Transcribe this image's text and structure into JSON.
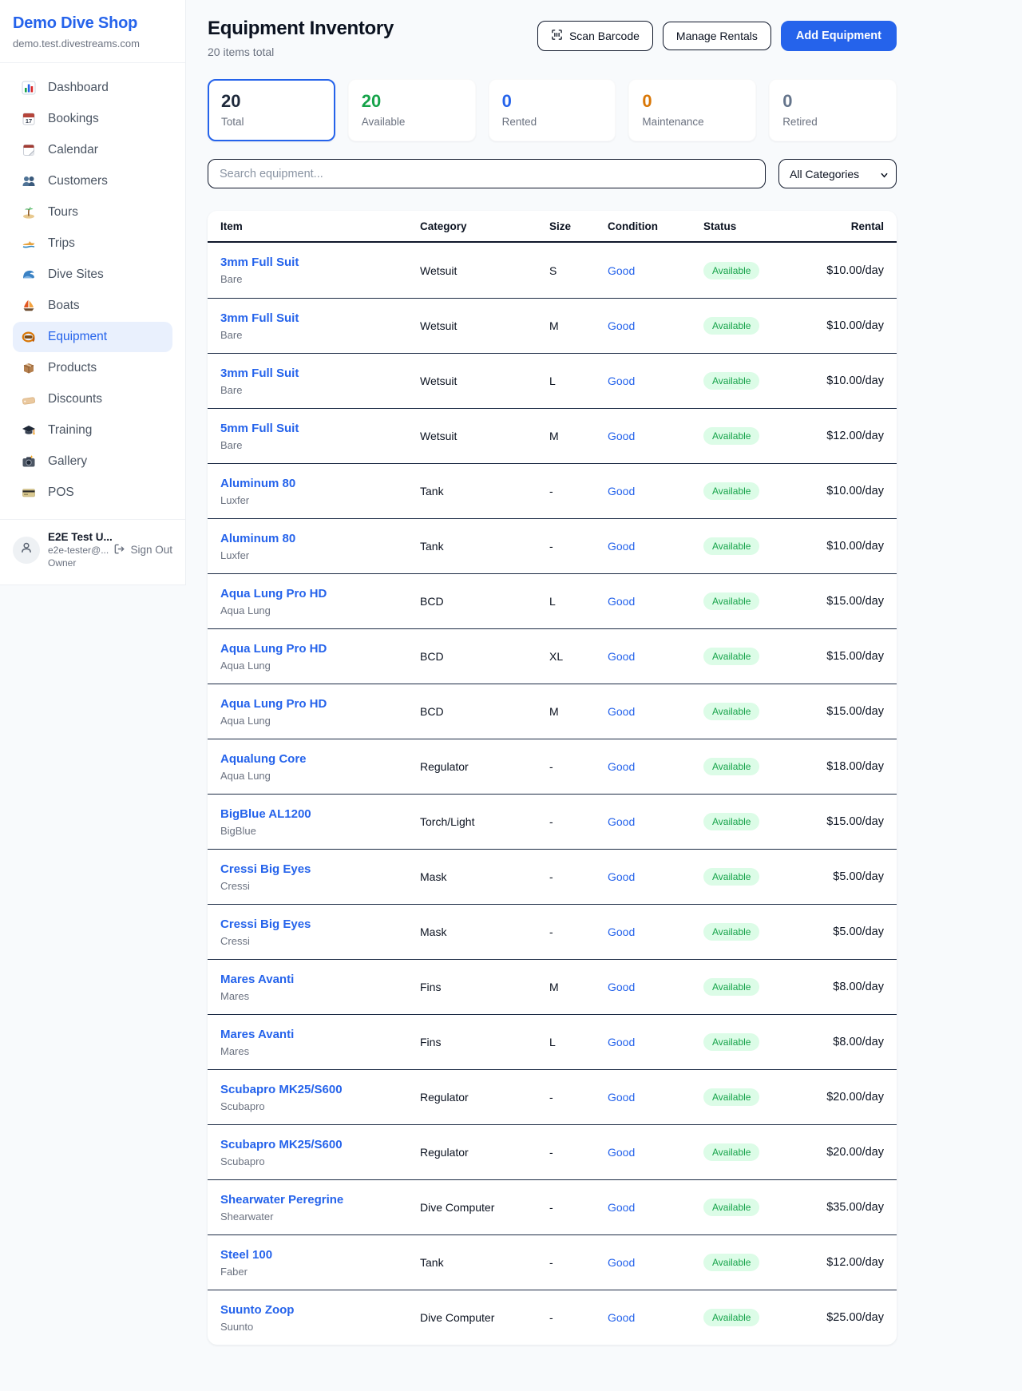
{
  "sidebar": {
    "brand": "Demo Dive Shop",
    "domain": "demo.test.divestreams.com",
    "items": [
      {
        "label": "Dashboard",
        "icon": "dashboard-icon"
      },
      {
        "label": "Bookings",
        "icon": "bookings-icon"
      },
      {
        "label": "Calendar",
        "icon": "calendar-icon"
      },
      {
        "label": "Customers",
        "icon": "customers-icon"
      },
      {
        "label": "Tours",
        "icon": "tours-icon"
      },
      {
        "label": "Trips",
        "icon": "trips-icon"
      },
      {
        "label": "Dive Sites",
        "icon": "dive-sites-icon"
      },
      {
        "label": "Boats",
        "icon": "boats-icon"
      },
      {
        "label": "Equipment",
        "icon": "equipment-icon",
        "active": true
      },
      {
        "label": "Products",
        "icon": "products-icon"
      },
      {
        "label": "Discounts",
        "icon": "discounts-icon"
      },
      {
        "label": "Training",
        "icon": "training-icon"
      },
      {
        "label": "Gallery",
        "icon": "gallery-icon"
      },
      {
        "label": "POS",
        "icon": "pos-icon"
      }
    ],
    "user": {
      "name": "E2E Test U...",
      "email": "e2e-tester@...",
      "role": "Owner",
      "sign_out": "Sign Out"
    }
  },
  "header": {
    "title": "Equipment Inventory",
    "subtitle": "20 items total",
    "scan_barcode": "Scan Barcode",
    "manage_rentals": "Manage Rentals",
    "add_equipment": "Add Equipment"
  },
  "stats": [
    {
      "value": "20",
      "label": "Total",
      "color": "#1e293b",
      "selected": true
    },
    {
      "value": "20",
      "label": "Available",
      "color": "#16a34a",
      "selected": false
    },
    {
      "value": "0",
      "label": "Rented",
      "color": "#2563eb",
      "selected": false
    },
    {
      "value": "0",
      "label": "Maintenance",
      "color": "#d97706",
      "selected": false
    },
    {
      "value": "0",
      "label": "Retired",
      "color": "#64748b",
      "selected": false
    }
  ],
  "filters": {
    "search_placeholder": "Search equipment...",
    "category": "All Categories"
  },
  "table": {
    "columns": [
      "Item",
      "Category",
      "Size",
      "Condition",
      "Status",
      "Rental"
    ],
    "rows": [
      {
        "name": "3mm Full Suit",
        "brand": "Bare",
        "category": "Wetsuit",
        "size": "S",
        "condition": "Good",
        "status": "Available",
        "rental": "$10.00/day"
      },
      {
        "name": "3mm Full Suit",
        "brand": "Bare",
        "category": "Wetsuit",
        "size": "M",
        "condition": "Good",
        "status": "Available",
        "rental": "$10.00/day"
      },
      {
        "name": "3mm Full Suit",
        "brand": "Bare",
        "category": "Wetsuit",
        "size": "L",
        "condition": "Good",
        "status": "Available",
        "rental": "$10.00/day"
      },
      {
        "name": "5mm Full Suit",
        "brand": "Bare",
        "category": "Wetsuit",
        "size": "M",
        "condition": "Good",
        "status": "Available",
        "rental": "$12.00/day"
      },
      {
        "name": "Aluminum 80",
        "brand": "Luxfer",
        "category": "Tank",
        "size": "-",
        "condition": "Good",
        "status": "Available",
        "rental": "$10.00/day"
      },
      {
        "name": "Aluminum 80",
        "brand": "Luxfer",
        "category": "Tank",
        "size": "-",
        "condition": "Good",
        "status": "Available",
        "rental": "$10.00/day"
      },
      {
        "name": "Aqua Lung Pro HD",
        "brand": "Aqua Lung",
        "category": "BCD",
        "size": "L",
        "condition": "Good",
        "status": "Available",
        "rental": "$15.00/day"
      },
      {
        "name": "Aqua Lung Pro HD",
        "brand": "Aqua Lung",
        "category": "BCD",
        "size": "XL",
        "condition": "Good",
        "status": "Available",
        "rental": "$15.00/day"
      },
      {
        "name": "Aqua Lung Pro HD",
        "brand": "Aqua Lung",
        "category": "BCD",
        "size": "M",
        "condition": "Good",
        "status": "Available",
        "rental": "$15.00/day"
      },
      {
        "name": "Aqualung Core",
        "brand": "Aqua Lung",
        "category": "Regulator",
        "size": "-",
        "condition": "Good",
        "status": "Available",
        "rental": "$18.00/day"
      },
      {
        "name": "BigBlue AL1200",
        "brand": "BigBlue",
        "category": "Torch/Light",
        "size": "-",
        "condition": "Good",
        "status": "Available",
        "rental": "$15.00/day"
      },
      {
        "name": "Cressi Big Eyes",
        "brand": "Cressi",
        "category": "Mask",
        "size": "-",
        "condition": "Good",
        "status": "Available",
        "rental": "$5.00/day"
      },
      {
        "name": "Cressi Big Eyes",
        "brand": "Cressi",
        "category": "Mask",
        "size": "-",
        "condition": "Good",
        "status": "Available",
        "rental": "$5.00/day"
      },
      {
        "name": "Mares Avanti",
        "brand": "Mares",
        "category": "Fins",
        "size": "M",
        "condition": "Good",
        "status": "Available",
        "rental": "$8.00/day"
      },
      {
        "name": "Mares Avanti",
        "brand": "Mares",
        "category": "Fins",
        "size": "L",
        "condition": "Good",
        "status": "Available",
        "rental": "$8.00/day"
      },
      {
        "name": "Scubapro MK25/S600",
        "brand": "Scubapro",
        "category": "Regulator",
        "size": "-",
        "condition": "Good",
        "status": "Available",
        "rental": "$20.00/day"
      },
      {
        "name": "Scubapro MK25/S600",
        "brand": "Scubapro",
        "category": "Regulator",
        "size": "-",
        "condition": "Good",
        "status": "Available",
        "rental": "$20.00/day"
      },
      {
        "name": "Shearwater Peregrine",
        "brand": "Shearwater",
        "category": "Dive Computer",
        "size": "-",
        "condition": "Good",
        "status": "Available",
        "rental": "$35.00/day"
      },
      {
        "name": "Steel 100",
        "brand": "Faber",
        "category": "Tank",
        "size": "-",
        "condition": "Good",
        "status": "Available",
        "rental": "$12.00/day"
      },
      {
        "name": "Suunto Zoop",
        "brand": "Suunto",
        "category": "Dive Computer",
        "size": "-",
        "condition": "Good",
        "status": "Available",
        "rental": "$25.00/day"
      }
    ]
  }
}
